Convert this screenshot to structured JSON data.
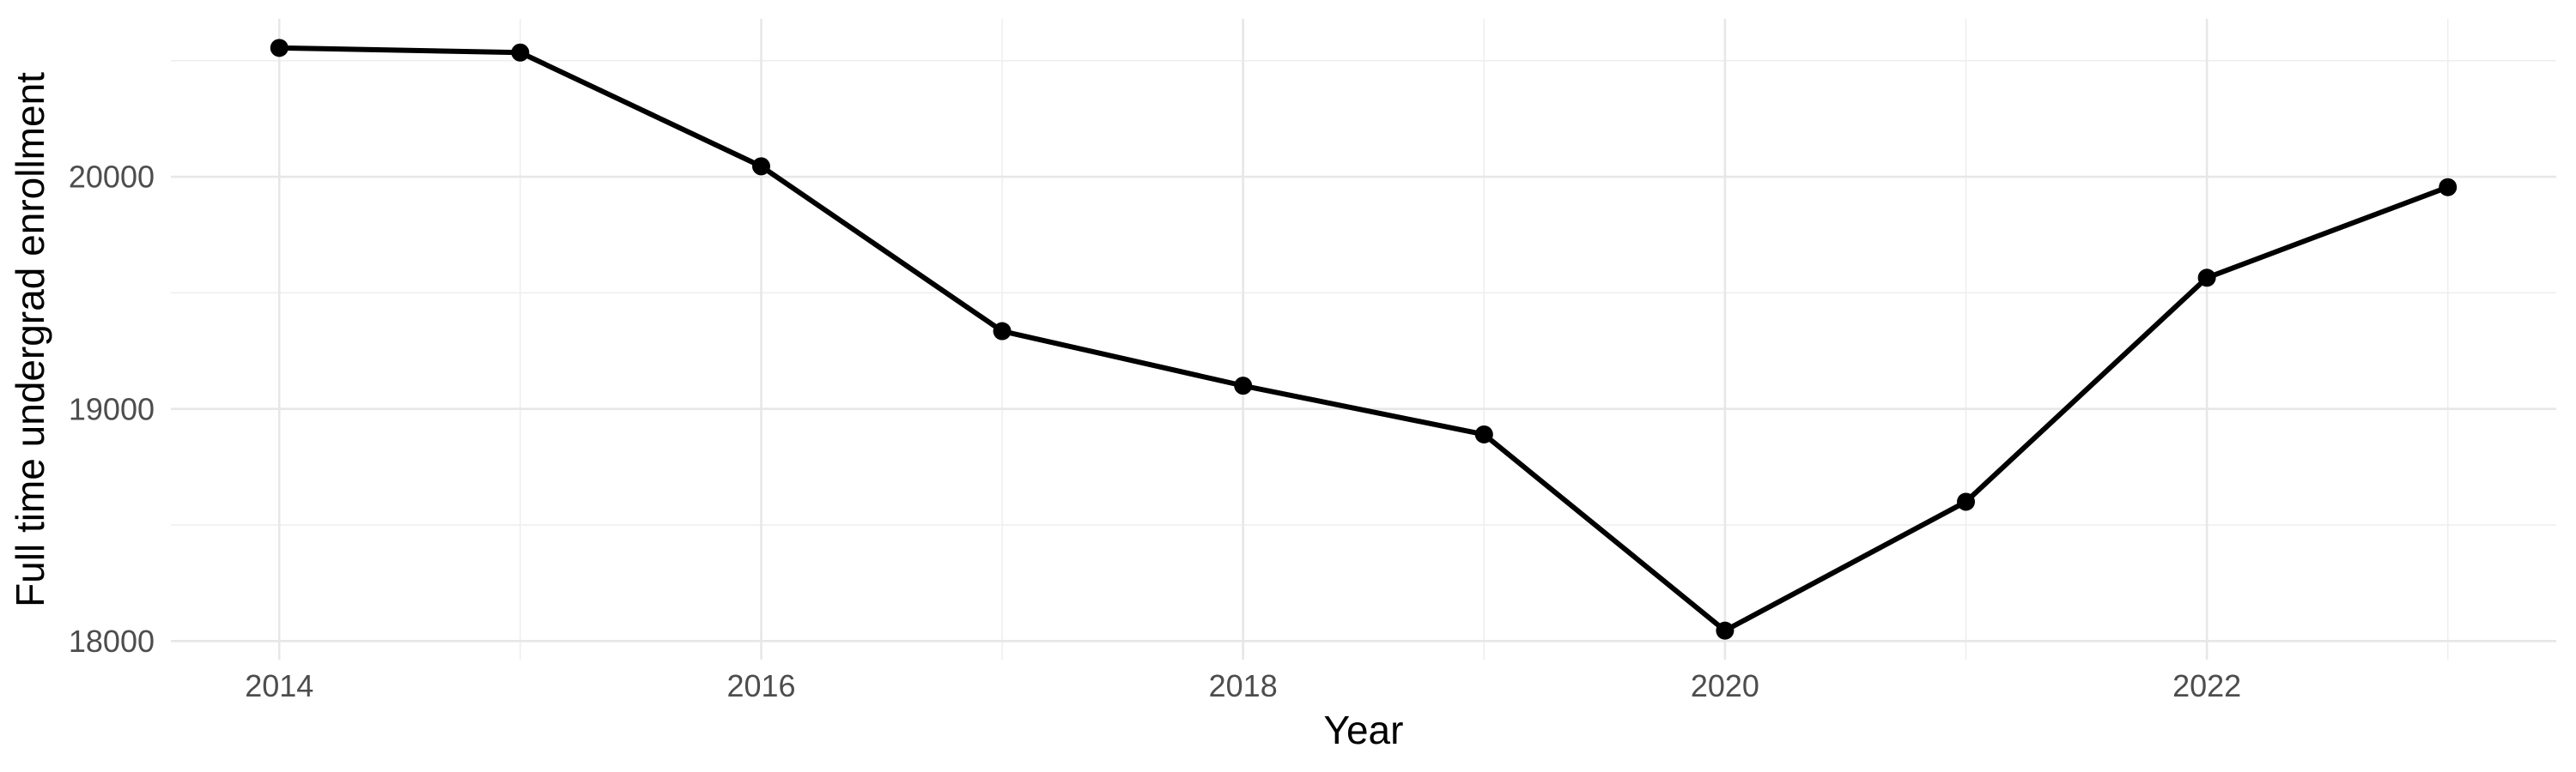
{
  "chart_data": {
    "type": "line",
    "title": "",
    "xlabel": "Year",
    "ylabel": "Full time undergrad enrollment",
    "series": [
      {
        "name": "Full time undergrad enrollment",
        "x": [
          2014,
          2015,
          2016,
          2017,
          2018,
          2019,
          2020,
          2021,
          2022,
          2023
        ],
        "values": [
          20555,
          20535,
          20045,
          19335,
          19100,
          18890,
          18045,
          18600,
          19565,
          19955
        ]
      }
    ],
    "x_ticks_major": [
      2014,
      2016,
      2018,
      2020,
      2022
    ],
    "x_ticks_minor": [
      2015,
      2017,
      2019,
      2021,
      2023
    ],
    "y_ticks_major": [
      18000,
      19000,
      20000
    ],
    "y_ticks_minor": [
      18500,
      19500,
      20500
    ],
    "xlim": [
      2013.55,
      2023.45
    ],
    "ylim": [
      17920,
      20680
    ],
    "grid": true,
    "legend": false,
    "colors": {
      "background": "#ffffff",
      "line": "#000000",
      "point": "#000000",
      "grid_major": "#e7e7e7",
      "grid_minor": "#eeeeee",
      "tick_label": "#4d4d4d",
      "axis_title": "#000000"
    }
  }
}
